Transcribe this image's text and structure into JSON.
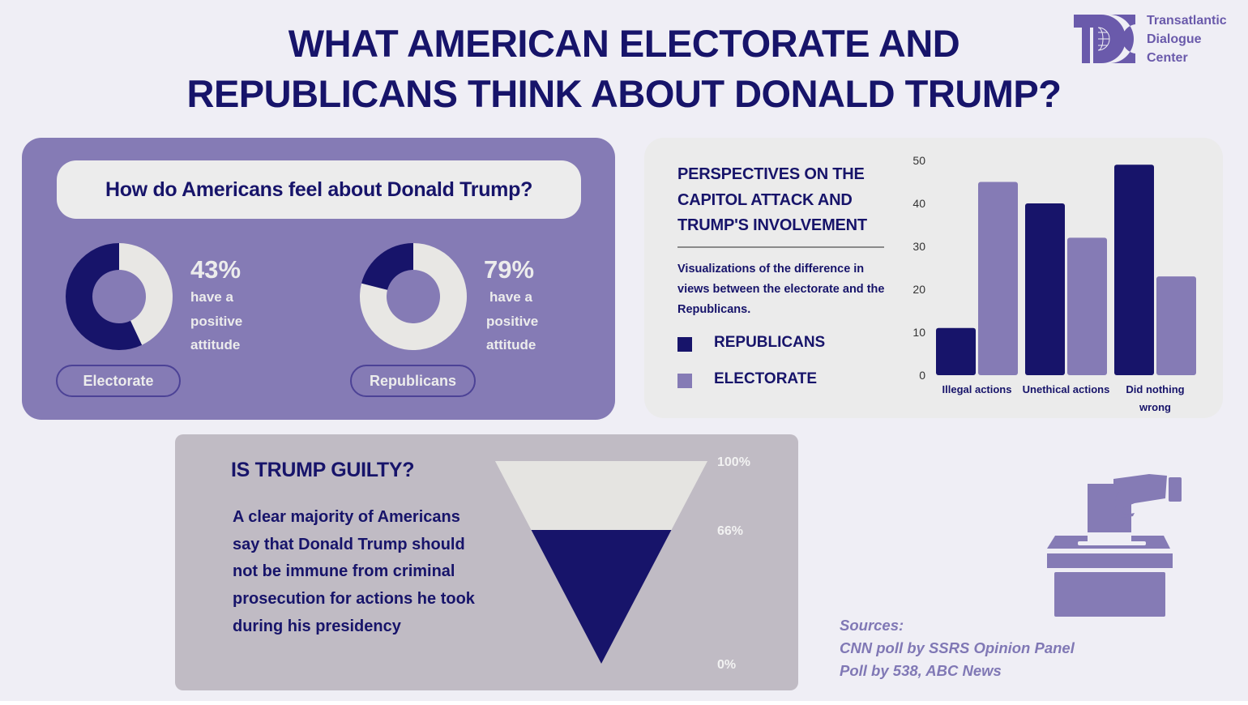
{
  "header": {
    "title_line1": "WHAT AMERICAN ELECTORATE AND",
    "title_line2": "REPUBLICANS THINK ABOUT DONALD TRUMP?"
  },
  "logo": {
    "icon": "tdc-globe-logo-icon",
    "lines": [
      "Transatlantic",
      "Dialogue",
      "Center"
    ]
  },
  "colors": {
    "navy": "#17146a",
    "lavender": "#857bb5",
    "light": "#e8e7e4",
    "canvas": "#efeef5"
  },
  "attitude": {
    "question": "How do Americans feel about Donald Trump?",
    "groups": [
      {
        "name": "Electorate",
        "percent_label": "43%",
        "positive": 43,
        "lines": [
          "have a",
          "positive",
          "attitude"
        ]
      },
      {
        "name": "Republicans",
        "percent_label": "79%",
        "positive": 79,
        "lines": [
          "have a",
          "positive",
          "attitude"
        ]
      }
    ]
  },
  "capitol": {
    "title_lines": [
      "PERSPECTIVES ON THE",
      "CAPITOL ATTACK AND",
      "TRUMP'S INVOLVEMENT"
    ],
    "description": "Visualizations of the difference in views between the electorate and the Republicans.",
    "legend": [
      {
        "label": "REPUBLICANS",
        "color": "#17146a"
      },
      {
        "label": "ELECTORATE",
        "color": "#857bb5"
      }
    ]
  },
  "guilty": {
    "title": "IS TRUMP GUILTY?",
    "body": "A clear majority of Americans say that Donald Trump should not be immune from criminal prosecution for actions he took during his presidency",
    "tick_labels": [
      "100%",
      "66%",
      "0%"
    ]
  },
  "sources": {
    "heading": "Sources:",
    "items": [
      "CNN poll by SSRS Opinion Panel",
      "Poll by 538, ABC News"
    ],
    "icon": "ballot-box-icon"
  },
  "chart_data": [
    {
      "type": "pie",
      "title": "Electorate",
      "labels": [
        "Positive attitude",
        "Other"
      ],
      "values": [
        43,
        57
      ],
      "annotation": "43% have a positive attitude"
    },
    {
      "type": "pie",
      "title": "Republicans",
      "labels": [
        "Positive attitude",
        "Other"
      ],
      "values": [
        79,
        21
      ],
      "annotation": "79% have a positive attitude"
    },
    {
      "type": "bar",
      "title": "PERSPECTIVES ON THE CAPITOL ATTACK AND TRUMP'S INVOLVEMENT",
      "categories": [
        "Illegal actions",
        "Unethical actions",
        "Did nothing wrong"
      ],
      "category_lines": [
        [
          "Illegal actions"
        ],
        [
          "Unethical actions"
        ],
        [
          "Did nothing",
          "wrong"
        ]
      ],
      "series": [
        {
          "name": "REPUBLICANS",
          "color": "#17146a",
          "values": [
            11,
            40,
            49
          ]
        },
        {
          "name": "ELECTORATE",
          "color": "#857bb5",
          "values": [
            45,
            32,
            23
          ]
        }
      ],
      "yticks": [
        0,
        10,
        20,
        30,
        40,
        50
      ],
      "ylim": [
        0,
        50
      ],
      "xlabel": "",
      "ylabel": "",
      "grid": false,
      "legend": "left"
    },
    {
      "type": "area",
      "title": "IS TRUMP GUILTY?",
      "description": "Funnel: share saying Trump should not be immune from prosecution",
      "levels": [
        100,
        66,
        0
      ],
      "tick_labels": [
        "100%",
        "66%",
        "0%"
      ],
      "highlight_value": 66
    }
  ]
}
